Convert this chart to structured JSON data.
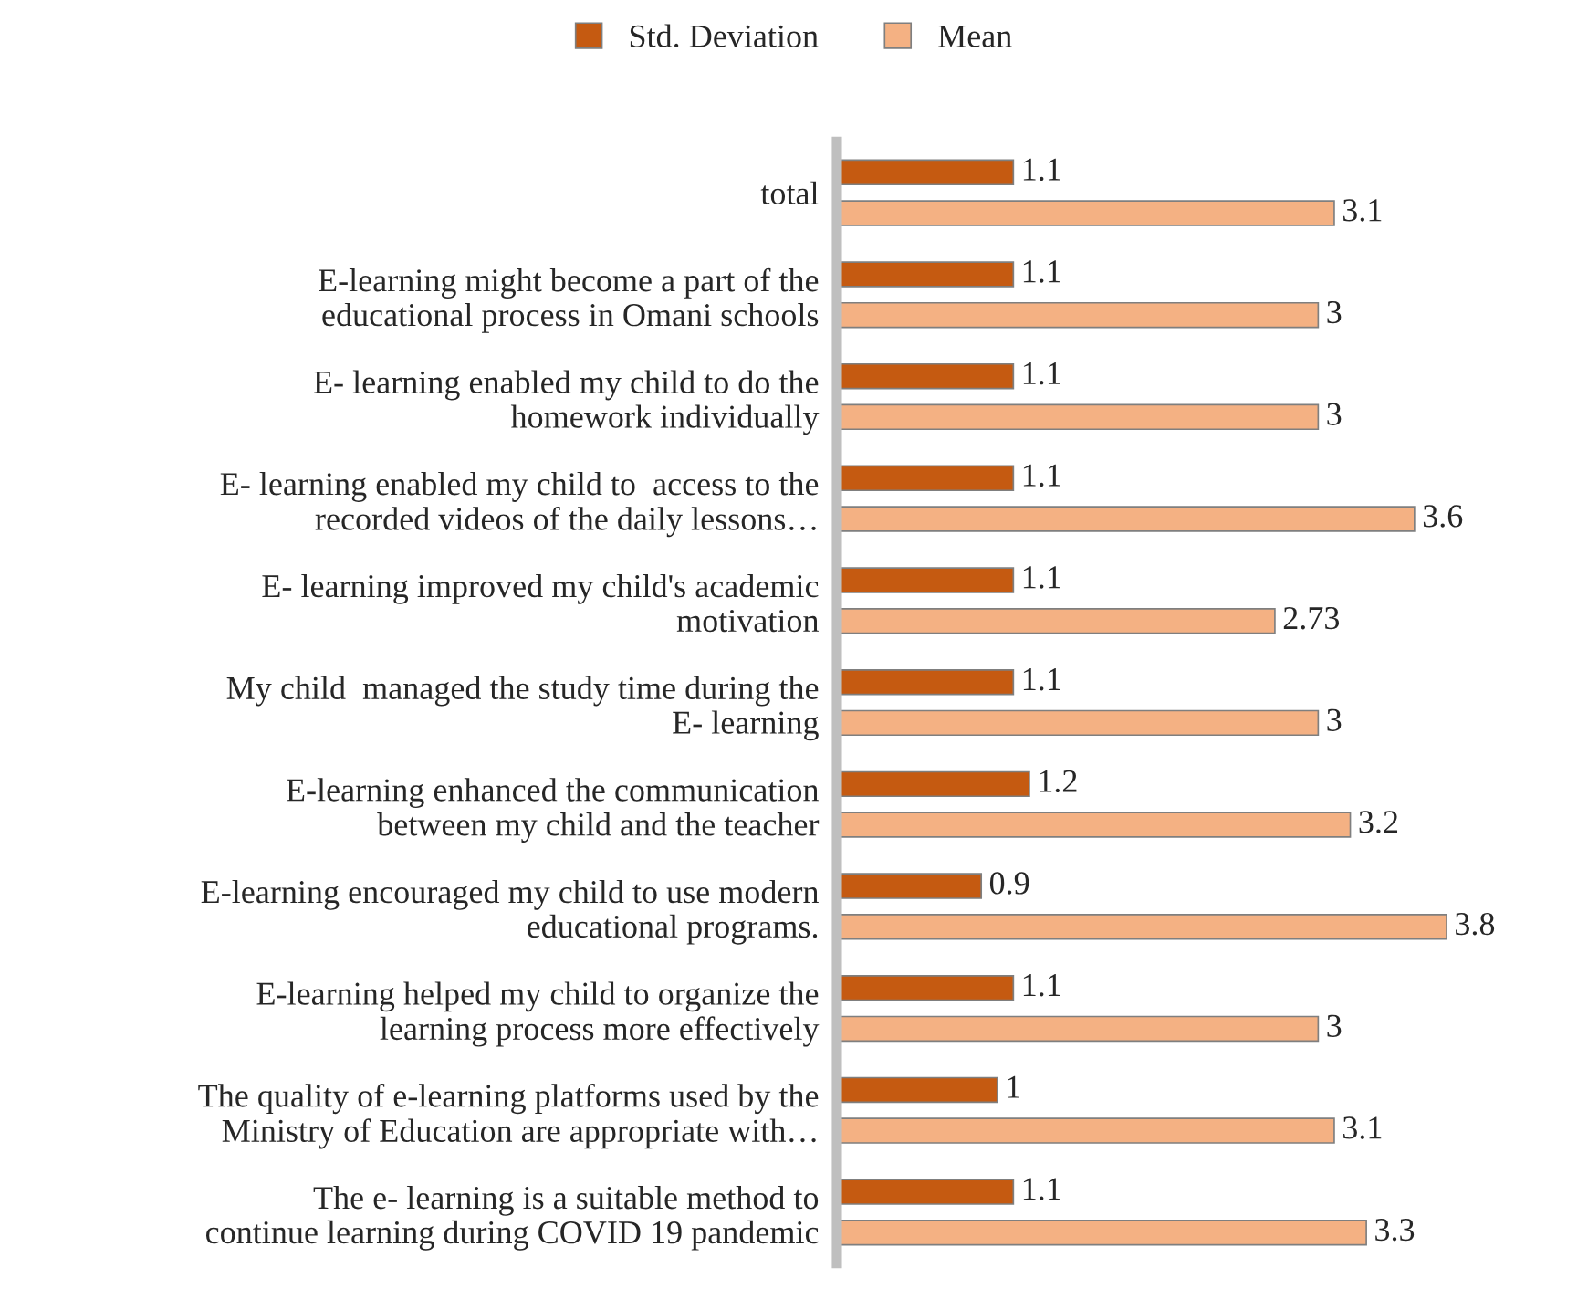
{
  "chart_data": {
    "type": "bar",
    "orientation": "horizontal",
    "data_labels": true,
    "legend": "top",
    "grid": false,
    "tick_labels": "y",
    "categories": [
      "total",
      "E-learning might become a part of the\neducational process in Omani schools",
      "E- learning enabled my child to do the\nhomework individually",
      "E- learning enabled my child to  access to the\nrecorded videos of the daily lessons…",
      "E- learning improved my child's academic\nmotivation",
      "My child  managed the study time during the\nE- learning",
      "E-learning enhanced the communication\nbetween my child and the teacher",
      "E-learning encouraged my child to use modern\neducational programs.",
      "E-learning helped my child to organize the\nlearning process more effectively",
      "The quality of e-learning platforms used by the\nMinistry of Education are appropriate with…",
      "The e- learning is a suitable method to\ncontinue learning during COVID 19 pandemic"
    ],
    "series": [
      {
        "name": "Std. Deviation",
        "color": "#c55a11",
        "values": [
          1.1,
          1.1,
          1.1,
          1.1,
          1.1,
          1.1,
          1.2,
          0.9,
          1.1,
          1,
          1.1
        ]
      },
      {
        "name": "Mean",
        "color": "#f4b183",
        "values": [
          3.1,
          3,
          3,
          3.6,
          2.73,
          3,
          3.2,
          3.8,
          3,
          3.1,
          3.3
        ]
      }
    ]
  }
}
